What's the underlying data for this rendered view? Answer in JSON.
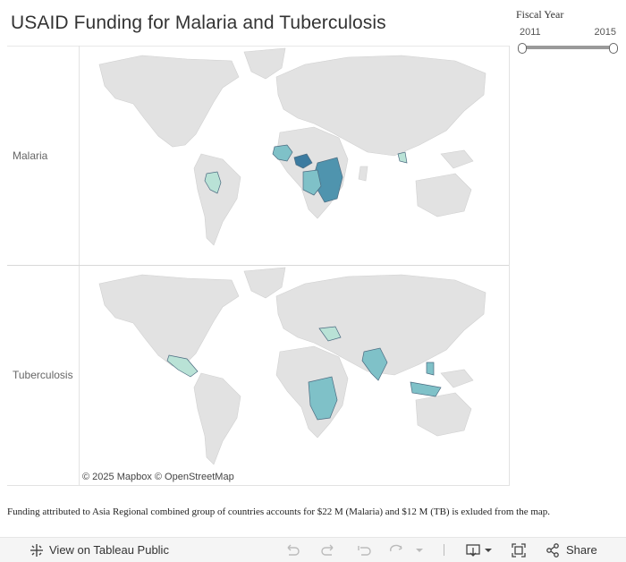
{
  "title": "USAID Funding for Malaria and Tuberculosis",
  "slider": {
    "label": "Fiscal  Year",
    "min": "2011",
    "max": "2015"
  },
  "rows": [
    {
      "label": "Malaria"
    },
    {
      "label": "Tuberculosis"
    }
  ],
  "attribution": "© 2025 Mapbox  © OpenStreetMap",
  "footnote": "Funding attributed to Asia Regional combined group of countries accounts for $22 M (Malaria) and $12 M (TB) is exluded from the map.",
  "toolbar": {
    "view_label": "View on Tableau Public",
    "share_label": "Share"
  },
  "colors": {
    "land": "#e2e2e2",
    "ocean": "#ffffff",
    "low": "#b9e2d6",
    "mid": "#7fc1c8",
    "high": "#4f94ae",
    "highest": "#3c7ba0"
  }
}
